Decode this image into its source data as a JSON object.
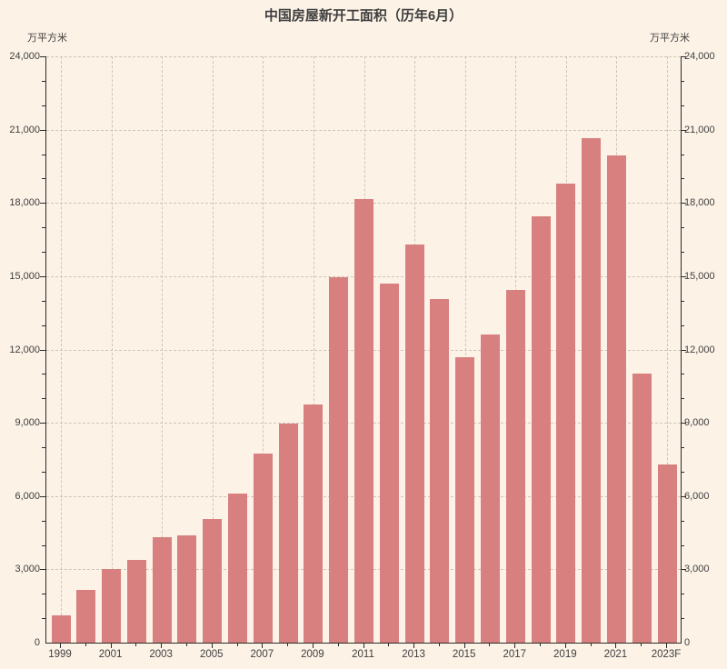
{
  "title": "中国房屋新开工面积（历年6月）",
  "unit_left": "万平方米",
  "unit_right": "万平方米",
  "colors": {
    "background": "#FCF2E6",
    "bar": "#D88080",
    "grid": "#CFC5B9",
    "axis": "#2B2B2B",
    "text": "#3F3F3F"
  },
  "chart_data": {
    "type": "bar",
    "title": "中国房屋新开工面积（历年6月）",
    "xlabel": "",
    "ylabel": "万平方米",
    "ylim": [
      0,
      24000
    ],
    "ytick_interval": 3000,
    "y_minor_tick_interval": 1000,
    "grid": true,
    "legend": "none",
    "x_labels_every": 2,
    "categories": [
      "1999",
      "2000",
      "2001",
      "2002",
      "2003",
      "2004",
      "2005",
      "2006",
      "2007",
      "2008",
      "2009",
      "2010",
      "2011",
      "2012",
      "2013",
      "2014",
      "2015",
      "2016",
      "2017",
      "2018",
      "2019",
      "2020",
      "2021",
      "2022",
      "2023F"
    ],
    "values": [
      1100,
      2150,
      3000,
      3400,
      4300,
      4400,
      5050,
      6100,
      7750,
      8950,
      9750,
      14950,
      18150,
      14700,
      16300,
      14050,
      11700,
      12600,
      14450,
      17450,
      18800,
      20650,
      19950,
      11000,
      7300
    ]
  }
}
